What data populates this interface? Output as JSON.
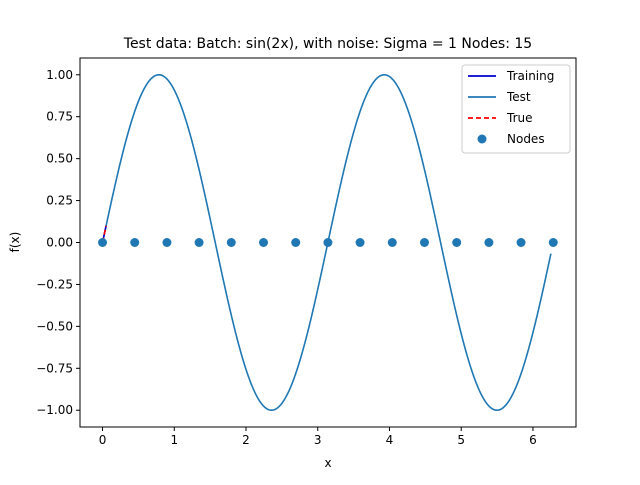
{
  "chart_data": {
    "type": "line",
    "title": "Test data: Batch: sin(2x), with noise: Sigma = 1 Nodes: 15",
    "xlabel": "x",
    "ylabel": "f(x)",
    "xlim": [
      -0.314,
      6.6
    ],
    "ylim": [
      -1.1,
      1.1
    ],
    "x_ticks": [
      0,
      1,
      2,
      3,
      4,
      5,
      6
    ],
    "y_ticks": [
      -1.0,
      -0.75,
      -0.5,
      -0.25,
      0.0,
      0.25,
      0.5,
      0.75,
      1.0
    ],
    "x_tick_labels": [
      "0",
      "1",
      "2",
      "3",
      "4",
      "5",
      "6"
    ],
    "y_tick_labels": [
      "−1.00",
      "−0.75",
      "−0.50",
      "−0.25",
      "0.00",
      "0.25",
      "0.50",
      "0.75",
      "1.00"
    ],
    "grid": false,
    "legend_position": "top-right",
    "series": [
      {
        "name": "Training",
        "kind": "line",
        "color": "#0000cc",
        "x": [
          0.0,
          0.05
        ],
        "y": [
          0.0,
          0.0998
        ]
      },
      {
        "name": "Test",
        "kind": "line",
        "color": "#1f77b4",
        "function": "sin(2x)",
        "x": [
          0.0,
          0.2,
          0.4,
          0.6,
          0.785,
          1.0,
          1.2,
          1.4,
          1.571,
          1.8,
          2.0,
          2.2,
          2.356,
          2.6,
          2.8,
          3.0,
          3.142,
          3.4,
          3.6,
          3.8,
          3.927,
          4.2,
          4.4,
          4.6,
          4.712,
          5.0,
          5.2,
          5.498,
          5.8,
          6.0,
          6.25
        ],
        "y": [
          0.0,
          0.389,
          0.717,
          0.932,
          1.0,
          0.909,
          0.675,
          0.335,
          0.0,
          -0.443,
          -0.757,
          -0.952,
          -1.0,
          -0.886,
          -0.631,
          -0.279,
          0.0,
          0.494,
          0.794,
          0.968,
          1.0,
          0.855,
          0.584,
          0.222,
          0.0,
          -0.544,
          -0.827,
          -1.0,
          -0.834,
          -0.537,
          -0.066
        ]
      },
      {
        "name": "True",
        "kind": "dashed-line",
        "color": "#ff0000",
        "x": [
          0.0,
          0.05
        ],
        "y": [
          0.0,
          0.0998
        ]
      },
      {
        "name": "Nodes",
        "kind": "scatter",
        "color": "#1f77b4",
        "x": [
          0.0,
          0.449,
          0.898,
          1.346,
          1.795,
          2.244,
          2.693,
          3.142,
          3.59,
          4.039,
          4.488,
          4.937,
          5.386,
          5.834,
          6.283
        ],
        "y": [
          0.0,
          0.0,
          0.0,
          0.0,
          0.0,
          0.0,
          0.0,
          0.0,
          0.0,
          0.0,
          0.0,
          0.0,
          0.0,
          0.0,
          0.0
        ]
      }
    ],
    "legend": [
      "Training",
      "Test",
      "True",
      "Nodes"
    ]
  }
}
